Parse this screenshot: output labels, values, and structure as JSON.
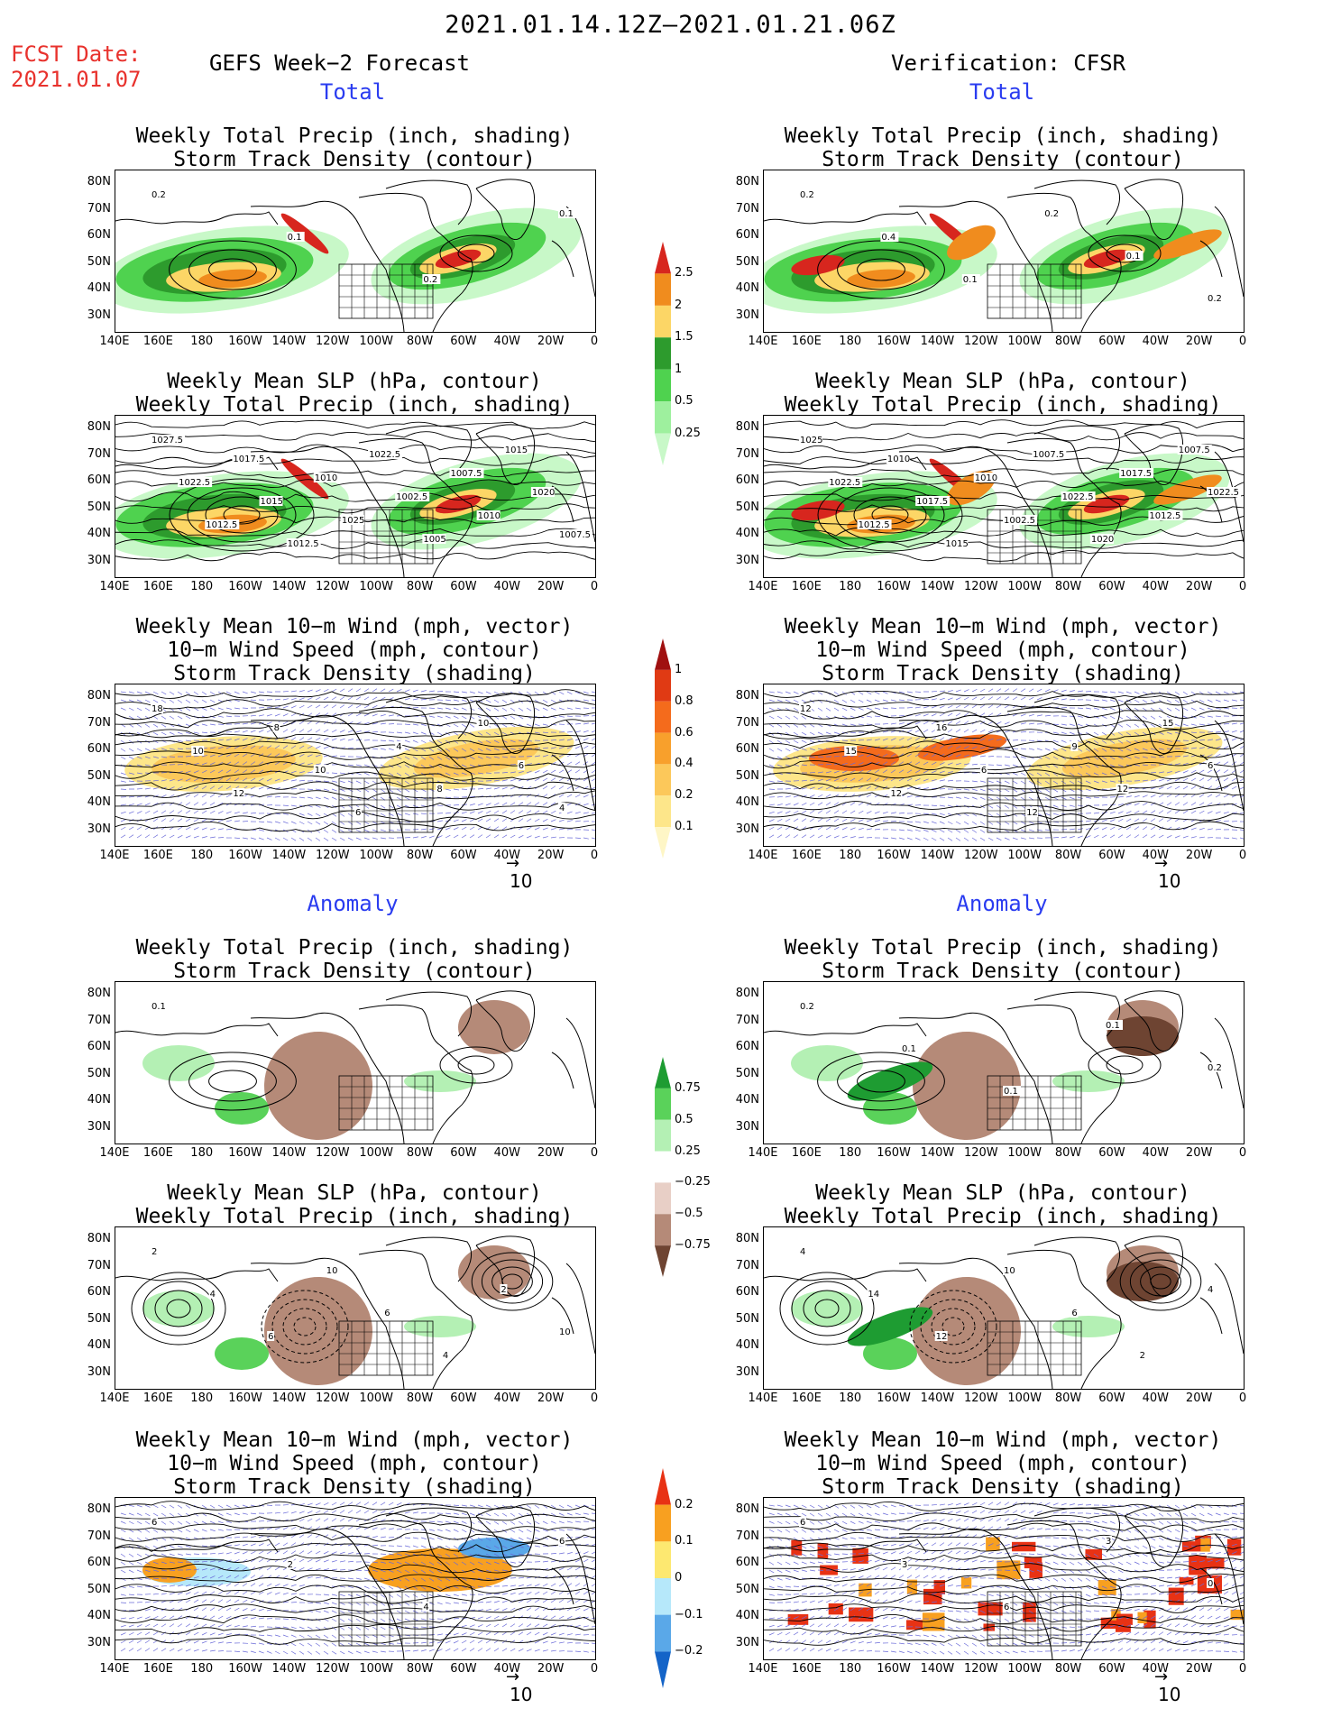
{
  "title": "2021.01.14.12Z–2021.01.21.06Z",
  "fcst_label": "FCST Date:",
  "fcst_date": "2021.01.07",
  "left_header": "GEFS Week−2 Forecast",
  "right_header": "Verification: CFSR",
  "section_total": "Total",
  "section_anomaly": "Anomaly",
  "panel_titles": {
    "precip_track": [
      "Weekly Total Precip (inch, shading)",
      "Storm Track Density (contour)"
    ],
    "slp_precip": [
      "Weekly Mean SLP (hPa, contour)",
      "Weekly Total Precip (inch, shading)"
    ],
    "wind_track": [
      "Weekly Mean 10−m Wind (mph, vector)",
      "10−m Wind Speed (mph, contour)",
      "Storm Track Density (shading)"
    ]
  },
  "lat_labels": [
    "80N",
    "70N",
    "60N",
    "50N",
    "40N",
    "30N"
  ],
  "lon_labels": [
    "140E",
    "160E",
    "180",
    "160W",
    "140W",
    "120W",
    "100W",
    "80W",
    "60W",
    "40W",
    "20W",
    "0"
  ],
  "vector_ref_label": "10",
  "colorbars": {
    "total_precip": {
      "levels": [
        "2.5",
        "2",
        "1.5",
        "1",
        "0.5",
        "0.25"
      ],
      "colors": [
        "#d7261e",
        "#f08c1e",
        "#fcd666",
        "#2d9b2d",
        "#4fd24f",
        "#9ef09e",
        "#c8f8c8"
      ]
    },
    "storm_track_total": {
      "levels": [
        "1",
        "0.8",
        "0.6",
        "0.4",
        "0.2",
        "0.1"
      ],
      "colors": [
        "#a01010",
        "#e03a14",
        "#f46b1c",
        "#f8a02c",
        "#fcc85a",
        "#fde68a",
        "#fef6c6"
      ]
    },
    "precip_anom": {
      "levels": [
        "0.75",
        "0.5",
        "0.25",
        "−0.25",
        "−0.5",
        "−0.75"
      ],
      "colors": [
        "#1e9c32",
        "#5ad25a",
        "#b4f0b4",
        "#ffffff",
        "#e8cfc6",
        "#b58a78",
        "#6e4432"
      ]
    },
    "storm_track_anom": {
      "levels": [
        "0.2",
        "0.1",
        "0",
        "−0.1",
        "−0.2"
      ],
      "colors": [
        "#e83214",
        "#f8a020",
        "#fde870",
        "#b6e8fa",
        "#5aa8e8",
        "#1464c8"
      ]
    }
  },
  "panels": [
    {
      "id": "total-precip-track-gefs",
      "labels": [
        "0.2",
        "0.1",
        "0.2",
        "0.1"
      ]
    },
    {
      "id": "total-slp-precip-gefs",
      "labels": [
        "1027.5",
        "1022.5",
        "1012.5",
        "1017.5",
        "1015",
        "1012.5",
        "1010",
        "1025",
        "1022.5",
        "1002.5",
        "1005",
        "1007.5",
        "1010",
        "1015",
        "1020",
        "1007.5"
      ]
    },
    {
      "id": "total-wind-track-gefs",
      "labels": [
        "18",
        "10",
        "12",
        "8",
        "10",
        "6",
        "4",
        "8",
        "10",
        "6",
        "4"
      ]
    },
    {
      "id": "total-precip-track-cfsr",
      "labels": [
        "0.2",
        "0.4",
        "0.1",
        "0.2",
        "0.1",
        "0.2"
      ]
    },
    {
      "id": "total-slp-precip-cfsr",
      "labels": [
        "1025",
        "1022.5",
        "1012.5",
        "1010",
        "1017.5",
        "1015",
        "1010",
        "1002.5",
        "1007.5",
        "1022.5",
        "1020",
        "1017.5",
        "1012.5",
        "1007.5",
        "1022.5"
      ]
    },
    {
      "id": "total-wind-track-cfsr",
      "labels": [
        "12",
        "15",
        "12",
        "16",
        "6",
        "12",
        "9",
        "12",
        "15",
        "6"
      ]
    },
    {
      "id": "anom-precip-track-gefs",
      "labels": [
        "0.1"
      ]
    },
    {
      "id": "anom-slp-precip-gefs",
      "labels": [
        "2",
        "4",
        "6",
        "10",
        "6",
        "4",
        "2",
        "10"
      ]
    },
    {
      "id": "anom-wind-track-gefs",
      "labels": [
        "6",
        "2",
        "4",
        "6"
      ]
    },
    {
      "id": "anom-precip-track-cfsr",
      "labels": [
        "0.2",
        "0.1",
        "0.1",
        "0.1",
        "0.2"
      ]
    },
    {
      "id": "anom-slp-precip-cfsr",
      "labels": [
        "4",
        "14",
        "12",
        "10",
        "6",
        "2",
        "4"
      ]
    },
    {
      "id": "anom-wind-track-cfsr",
      "labels": [
        "6",
        "3",
        "6",
        "3",
        "0"
      ]
    }
  ]
}
